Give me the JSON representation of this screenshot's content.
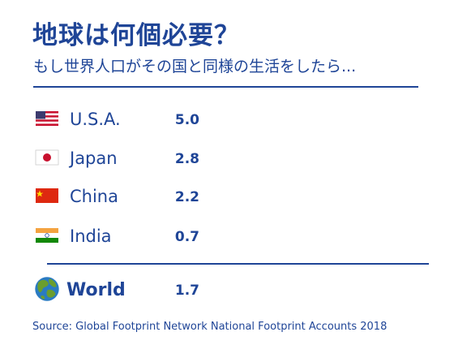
{
  "header": {
    "title": "地球は何個必要？",
    "subtitle": "もし世界人口がその国と同様の生活をしたら..."
  },
  "source": "Source: Global Footprint Network National Footprint Accounts 2018",
  "colors": {
    "text": "#1f4597",
    "ocean": "#2a7bc2",
    "land": "#6b9e2e",
    "flag_red": "#c8102e",
    "usa_blue": "#3c3b6e",
    "china_red": "#de2910",
    "china_star": "#ffde00",
    "india_saffron": "#f4a340",
    "india_green": "#138808"
  },
  "chart_data": {
    "type": "bar",
    "unit": "earths",
    "categories": [
      "U.S.A.",
      "Japan",
      "China",
      "India",
      "World"
    ],
    "values": [
      5.0,
      2.8,
      2.2,
      0.7,
      1.7
    ],
    "value_labels": [
      "5.0",
      "2.8",
      "2.2",
      "0.7",
      "1.7"
    ],
    "icons": [
      "usa-flag-icon",
      "japan-flag-icon",
      "china-flag-icon",
      "india-flag-icon",
      "earth-globe-icon"
    ],
    "title": "地球は何個必要？",
    "subtitle": "もし世界人口がその国と同様の生活をしたら...",
    "xlabel": "",
    "ylabel": ""
  }
}
